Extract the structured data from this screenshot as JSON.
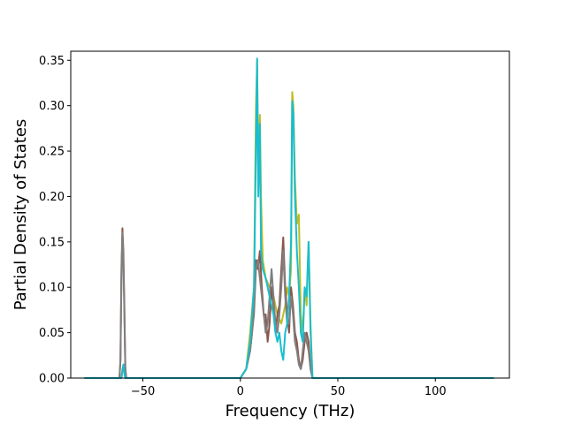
{
  "chart_data": {
    "type": "line",
    "title": "",
    "xlabel": "Frequency (THz)",
    "ylabel": "Partial Density of States",
    "xlim": [
      -87,
      138
    ],
    "ylim": [
      0,
      0.36
    ],
    "xticks": [
      -50,
      0,
      50,
      100
    ],
    "xtick_labels": [
      "−50",
      "0",
      "50",
      "100"
    ],
    "yticks": [
      0.0,
      0.05,
      0.1,
      0.15,
      0.2,
      0.25,
      0.3,
      0.35
    ],
    "ytick_labels": [
      "0.00",
      "0.05",
      "0.10",
      "0.15",
      "0.20",
      "0.25",
      "0.30",
      "0.35"
    ],
    "grid": false,
    "legend": "none",
    "series": [
      {
        "color": "#bcbd22",
        "points": [
          [
            -80,
            0
          ],
          [
            -61,
            0
          ],
          [
            -60.5,
            0.01
          ],
          [
            -60,
            0.012
          ],
          [
            -59.5,
            0.005
          ],
          [
            -59,
            0
          ],
          [
            0,
            0
          ],
          [
            3,
            0.01
          ],
          [
            5,
            0.05
          ],
          [
            7,
            0.1
          ],
          [
            8,
            0.3
          ],
          [
            8.6,
            0.35
          ],
          [
            9.2,
            0.22
          ],
          [
            10,
            0.29
          ],
          [
            10.6,
            0.2
          ],
          [
            11.5,
            0.13
          ],
          [
            13,
            0.11
          ],
          [
            15,
            0.1
          ],
          [
            17,
            0.09
          ],
          [
            19,
            0.07
          ],
          [
            21,
            0.06
          ],
          [
            23,
            0.08
          ],
          [
            24,
            0.1
          ],
          [
            25,
            0.09
          ],
          [
            26,
            0.12
          ],
          [
            26.6,
            0.315
          ],
          [
            27.2,
            0.3
          ],
          [
            28,
            0.22
          ],
          [
            29,
            0.17
          ],
          [
            30,
            0.18
          ],
          [
            31,
            0.07
          ],
          [
            32,
            0.05
          ],
          [
            33,
            0.1
          ],
          [
            34,
            0.08
          ],
          [
            35,
            0.15
          ],
          [
            36,
            0.06
          ],
          [
            37,
            0
          ],
          [
            130,
            0
          ]
        ]
      },
      {
        "color": "#8c564b",
        "points": [
          [
            -80,
            0
          ],
          [
            -62,
            0
          ],
          [
            -61.5,
            0.02
          ],
          [
            -61,
            0.12
          ],
          [
            -60.5,
            0.165
          ],
          [
            -60,
            0.14
          ],
          [
            -59.5,
            0.08
          ],
          [
            -59,
            0.01
          ],
          [
            -58.5,
            0
          ],
          [
            0,
            0
          ],
          [
            3,
            0.01
          ],
          [
            5,
            0.03
          ],
          [
            6,
            0.05
          ],
          [
            7,
            0.08
          ],
          [
            8,
            0.13
          ],
          [
            9,
            0.12
          ],
          [
            10,
            0.14
          ],
          [
            11,
            0.1
          ],
          [
            12,
            0.07
          ],
          [
            13,
            0.07
          ],
          [
            14,
            0.04
          ],
          [
            15,
            0.06
          ],
          [
            16,
            0.1
          ],
          [
            17,
            0.08
          ],
          [
            18,
            0.05
          ],
          [
            19,
            0.07
          ],
          [
            20,
            0.08
          ],
          [
            21,
            0.12
          ],
          [
            22,
            0.155
          ],
          [
            23,
            0.1
          ],
          [
            24,
            0.07
          ],
          [
            25,
            0.05
          ],
          [
            26,
            0.1
          ],
          [
            27,
            0.08
          ],
          [
            28,
            0.05
          ],
          [
            29,
            0.04
          ],
          [
            30,
            0.02
          ],
          [
            31,
            0.01
          ],
          [
            32,
            0.02
          ],
          [
            33,
            0.04
          ],
          [
            34,
            0.05
          ],
          [
            35,
            0.04
          ],
          [
            36,
            0.01
          ],
          [
            37,
            0
          ],
          [
            130,
            0
          ]
        ]
      },
      {
        "color": "#7f7f7f",
        "points": [
          [
            -80,
            0
          ],
          [
            -62,
            0
          ],
          [
            -61.5,
            0.02
          ],
          [
            -61,
            0.11
          ],
          [
            -60.5,
            0.16
          ],
          [
            -60,
            0.13
          ],
          [
            -59.5,
            0.07
          ],
          [
            -59,
            0.01
          ],
          [
            -58.5,
            0
          ],
          [
            0,
            0
          ],
          [
            3,
            0.01
          ],
          [
            5,
            0.03
          ],
          [
            6,
            0.05
          ],
          [
            7,
            0.07
          ],
          [
            8,
            0.12
          ],
          [
            9,
            0.13
          ],
          [
            10,
            0.11
          ],
          [
            11,
            0.09
          ],
          [
            12,
            0.07
          ],
          [
            13,
            0.05
          ],
          [
            14,
            0.06
          ],
          [
            15,
            0.09
          ],
          [
            16,
            0.12
          ],
          [
            17,
            0.09
          ],
          [
            18,
            0.06
          ],
          [
            19,
            0.05
          ],
          [
            20,
            0.07
          ],
          [
            21,
            0.1
          ],
          [
            22,
            0.14
          ],
          [
            23,
            0.09
          ],
          [
            24,
            0.06
          ],
          [
            25,
            0.06
          ],
          [
            26,
            0.09
          ],
          [
            27,
            0.07
          ],
          [
            28,
            0.04
          ],
          [
            29,
            0.03
          ],
          [
            30,
            0.015
          ],
          [
            31,
            0.01
          ],
          [
            32,
            0.03
          ],
          [
            33,
            0.05
          ],
          [
            34,
            0.04
          ],
          [
            35,
            0.03
          ],
          [
            36,
            0.01
          ],
          [
            37,
            0
          ],
          [
            130,
            0
          ]
        ]
      },
      {
        "color": "#17becf",
        "points": [
          [
            -80,
            0
          ],
          [
            -61,
            0
          ],
          [
            -60.5,
            0.008
          ],
          [
            -60,
            0.015
          ],
          [
            -59.5,
            0.005
          ],
          [
            -59,
            0
          ],
          [
            0,
            0
          ],
          [
            3,
            0.01
          ],
          [
            5,
            0.04
          ],
          [
            6,
            0.07
          ],
          [
            7,
            0.1
          ],
          [
            8,
            0.25
          ],
          [
            8.6,
            0.352
          ],
          [
            9.2,
            0.2
          ],
          [
            10,
            0.28
          ],
          [
            10.6,
            0.14
          ],
          [
            11.5,
            0.12
          ],
          [
            13,
            0.11
          ],
          [
            14,
            0.1
          ],
          [
            15,
            0.09
          ],
          [
            16,
            0.08
          ],
          [
            17,
            0.07
          ],
          [
            18,
            0.05
          ],
          [
            19,
            0.04
          ],
          [
            20,
            0.05
          ],
          [
            21,
            0.03
          ],
          [
            22,
            0.02
          ],
          [
            23,
            0.05
          ],
          [
            24,
            0.06
          ],
          [
            25,
            0.09
          ],
          [
            26,
            0.15
          ],
          [
            26.6,
            0.305
          ],
          [
            27.2,
            0.29
          ],
          [
            28,
            0.2
          ],
          [
            29,
            0.14
          ],
          [
            30,
            0.1
          ],
          [
            31,
            0.05
          ],
          [
            32,
            0.04
          ],
          [
            33,
            0.1
          ],
          [
            34,
            0.09
          ],
          [
            35,
            0.15
          ],
          [
            36,
            0.05
          ],
          [
            37,
            0
          ],
          [
            130,
            0
          ]
        ]
      }
    ]
  }
}
